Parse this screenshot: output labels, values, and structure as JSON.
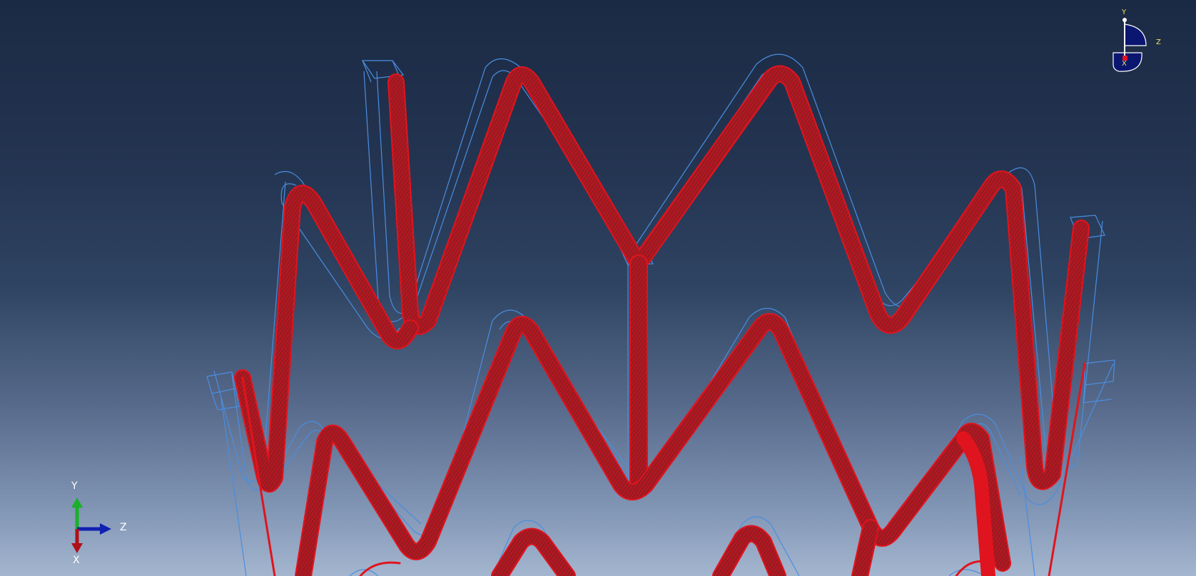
{
  "viewport": {
    "background_top": "#1b2a44",
    "background_bottom": "#a4b6cf"
  },
  "colors": {
    "deformed_mesh": "#e0141e",
    "deformed_fill": "#a01820",
    "undeformed_wireframe": "#4a8ee0",
    "triad_x": "#b0101a",
    "triad_y": "#19b02a",
    "triad_z": "#1020b0",
    "view_cube_fill": "#0a1670",
    "view_cube_label": "#f3e35a"
  },
  "triad": {
    "x_label": "X",
    "y_label": "Y",
    "z_label": "Z"
  },
  "view_cube": {
    "y_label": "Y",
    "z_label": "Z",
    "x_label": "X"
  },
  "icons": {
    "triad": "coordinate-triad-icon",
    "view_cube": "view-orientation-cube-icon"
  }
}
